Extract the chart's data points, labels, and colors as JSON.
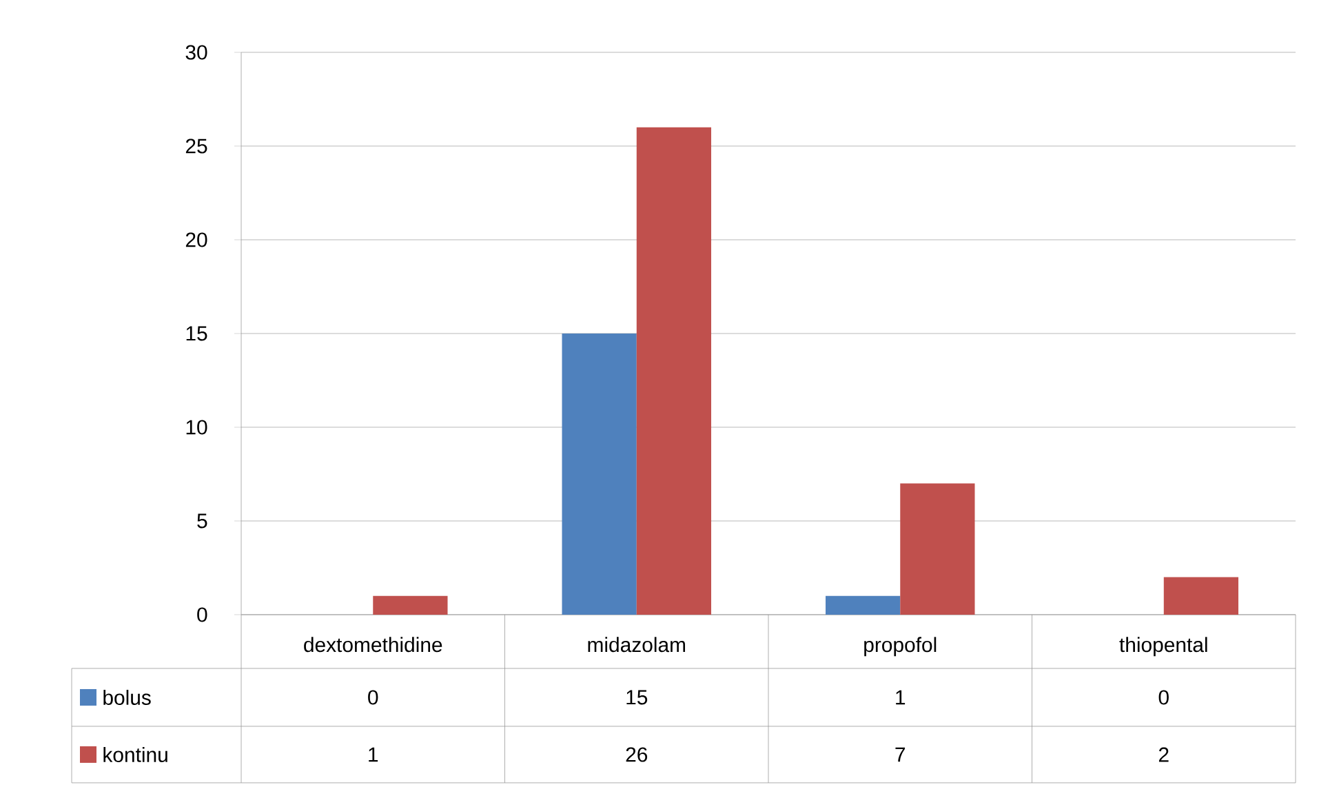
{
  "chart_data": {
    "type": "bar",
    "categories": [
      "dextomethidine",
      "midazolam",
      "propofol",
      "thiopental"
    ],
    "series": [
      {
        "name": "bolus",
        "color": "#4f81bd",
        "values": [
          0,
          15,
          1,
          0
        ]
      },
      {
        "name": "kontinu",
        "color": "#c0504d",
        "values": [
          1,
          26,
          7,
          2
        ]
      }
    ],
    "ylim": [
      0,
      30
    ],
    "yticks": [
      0,
      5,
      10,
      15,
      20,
      25,
      30
    ],
    "grid": "y",
    "legend": "bottom",
    "data_labels": true
  }
}
